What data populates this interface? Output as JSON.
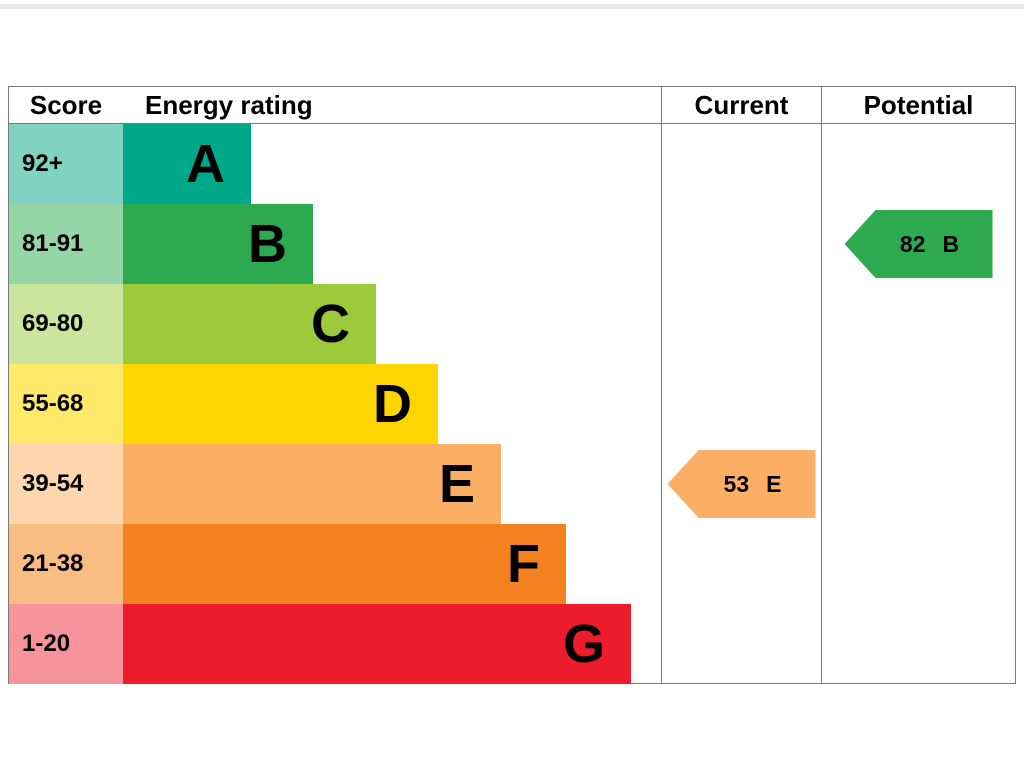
{
  "header": {
    "score": "Score",
    "energy_rating": "Energy rating",
    "current": "Current",
    "potential": "Potential"
  },
  "bands": [
    {
      "score": "92+",
      "letter": "A",
      "color": "#00a88a",
      "tint": "#7fd3c0"
    },
    {
      "score": "81-91",
      "letter": "B",
      "color": "#2daa50",
      "tint": "#96d5a5"
    },
    {
      "score": "69-80",
      "letter": "C",
      "color": "#9bcb3b",
      "tint": "#cce59d"
    },
    {
      "score": "55-68",
      "letter": "D",
      "color": "#ffd500",
      "tint": "#ffe96a"
    },
    {
      "score": "39-54",
      "letter": "E",
      "color": "#fcae65",
      "tint": "#fdd6ad"
    },
    {
      "score": "21-38",
      "letter": "F",
      "color": "#f48120",
      "tint": "#f8bd82"
    },
    {
      "score": "1-20",
      "letter": "G",
      "color": "#ec1c2d",
      "tint": "#f6939b"
    }
  ],
  "current": {
    "value": "53",
    "letter": "E",
    "color": "#fcae65"
  },
  "potential": {
    "value": "82",
    "letter": "B",
    "color": "#2daa50"
  },
  "chart_data": {
    "type": "bar",
    "title": "Energy rating",
    "categories": [
      "A",
      "B",
      "C",
      "D",
      "E",
      "F",
      "G"
    ],
    "score_ranges": [
      "92+",
      "81-91",
      "69-80",
      "55-68",
      "39-54",
      "21-38",
      "1-20"
    ],
    "colors": [
      "#00a88a",
      "#2daa50",
      "#9bcb3b",
      "#ffd500",
      "#fcae65",
      "#f48120",
      "#ec1c2d"
    ],
    "columns": [
      "Score",
      "Energy rating",
      "Current",
      "Potential"
    ],
    "markers": [
      {
        "name": "Current",
        "value": 53,
        "band": "E"
      },
      {
        "name": "Potential",
        "value": 82,
        "band": "B"
      }
    ],
    "legend_position": "none",
    "grid": false
  }
}
